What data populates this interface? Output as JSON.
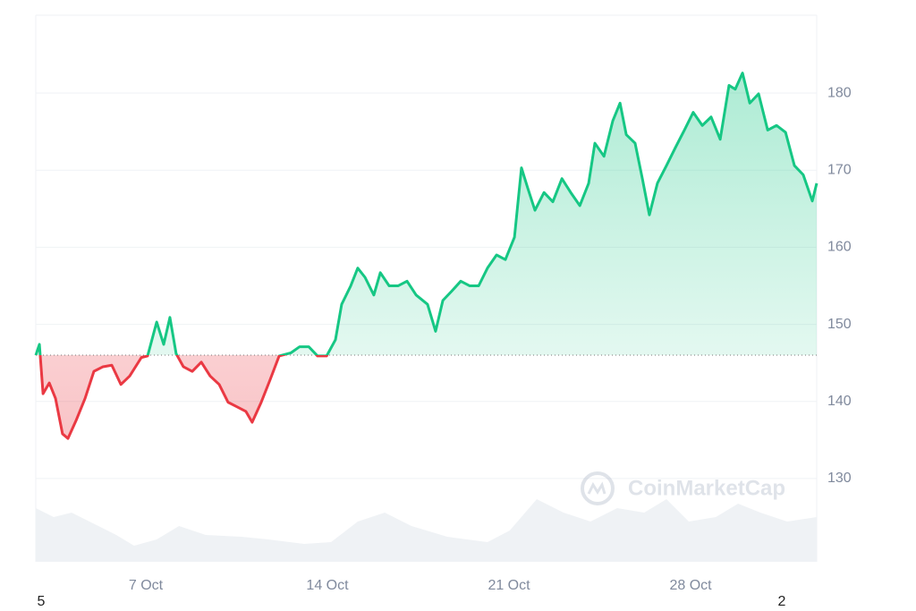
{
  "chart_data": {
    "type": "line",
    "x": [
      2.76,
      2.9,
      3.04,
      3.28,
      3.52,
      3.79,
      4.0,
      4.31,
      4.66,
      5.0,
      5.35,
      5.69,
      6.04,
      6.38,
      6.83,
      7.07,
      7.42,
      7.69,
      7.93,
      8.17,
      8.45,
      8.79,
      9.14,
      9.48,
      9.83,
      10.17,
      10.52,
      10.86,
      11.1,
      11.45,
      11.79,
      12.14,
      12.59,
      12.93,
      13.28,
      13.62,
      13.97,
      14.31,
      14.55,
      14.9,
      15.17,
      15.45,
      15.79,
      16.04,
      16.38,
      16.73,
      17.07,
      17.42,
      17.86,
      18.17,
      18.45,
      18.79,
      19.14,
      19.48,
      19.83,
      20.17,
      20.52,
      20.86,
      21.21,
      21.48,
      21.72,
      22.0,
      22.35,
      22.69,
      23.04,
      23.38,
      23.73,
      24.07,
      24.31,
      24.66,
      25.0,
      25.28,
      25.52,
      25.86,
      26.14,
      26.41,
      26.72,
      27.07,
      27.41,
      27.76,
      28.1,
      28.45,
      28.79,
      29.14,
      29.48,
      29.72,
      30.0,
      30.28,
      30.62,
      30.97,
      31.31,
      31.66,
      32.0,
      32.34,
      32.69,
      32.86
    ],
    "series": [
      {
        "name": "Price",
        "color_up": "#16c784",
        "color_down": "#ea3943",
        "values": [
          146.0,
          147.4,
          141.0,
          142.4,
          140.4,
          135.8,
          135.2,
          137.5,
          140.4,
          143.9,
          144.5,
          144.7,
          142.2,
          143.3,
          145.7,
          145.9,
          150.3,
          147.4,
          150.9,
          146.2,
          144.5,
          143.9,
          145.1,
          143.3,
          142.2,
          139.9,
          139.3,
          138.7,
          137.3,
          139.9,
          142.8,
          145.9,
          146.3,
          147.1,
          147.1,
          145.9,
          145.9,
          148.0,
          152.6,
          155.0,
          157.3,
          156.1,
          153.8,
          156.7,
          155.0,
          155.0,
          155.6,
          153.8,
          152.6,
          149.1,
          153.1,
          154.3,
          155.6,
          155.0,
          155.0,
          157.3,
          159.0,
          158.4,
          161.3,
          170.3,
          167.7,
          164.8,
          167.1,
          165.9,
          168.9,
          167.1,
          165.4,
          168.3,
          173.5,
          171.8,
          176.4,
          178.7,
          174.6,
          173.5,
          168.9,
          164.2,
          168.3,
          170.6,
          172.9,
          175.2,
          177.5,
          175.8,
          176.9,
          174.0,
          181.0,
          180.5,
          182.6,
          178.7,
          179.9,
          175.2,
          175.8,
          174.9,
          170.6,
          169.4,
          166.0,
          168.3
        ]
      }
    ],
    "volume": {
      "color": "#eff2f5",
      "x": [
        2.76,
        3.45,
        4.14,
        4.83,
        5.86,
        6.55,
        7.42,
        8.28,
        9.31,
        10.69,
        11.72,
        13.1,
        14.14,
        15.17,
        16.21,
        17.24,
        18.62,
        20.17,
        21.03,
        22.07,
        23.1,
        24.14,
        25.17,
        26.21,
        27.07,
        27.93,
        28.97,
        29.83,
        30.69,
        31.72,
        32.86
      ],
      "values": [
        60,
        50,
        55,
        45,
        30,
        18,
        25,
        40,
        30,
        28,
        25,
        20,
        22,
        45,
        55,
        40,
        28,
        22,
        35,
        70,
        55,
        45,
        60,
        55,
        70,
        45,
        50,
        65,
        55,
        45,
        50
      ],
      "y2lim": [
        0,
        100
      ]
    },
    "baseline": 146,
    "xlim": [
      2.76,
      32.86
    ],
    "xticks": [
      {
        "value": 7,
        "label": "7 Oct"
      },
      {
        "value": 14,
        "label": "14 Oct"
      },
      {
        "value": 21,
        "label": "21 Oct"
      },
      {
        "value": 28,
        "label": "28 Oct"
      }
    ],
    "edge_labels": [
      "5",
      "2"
    ],
    "ylim": [
      119.2,
      190.1
    ],
    "yticks": [
      130,
      140,
      150,
      160,
      170,
      180
    ],
    "grid": true,
    "watermark": "CoinMarketCap"
  }
}
